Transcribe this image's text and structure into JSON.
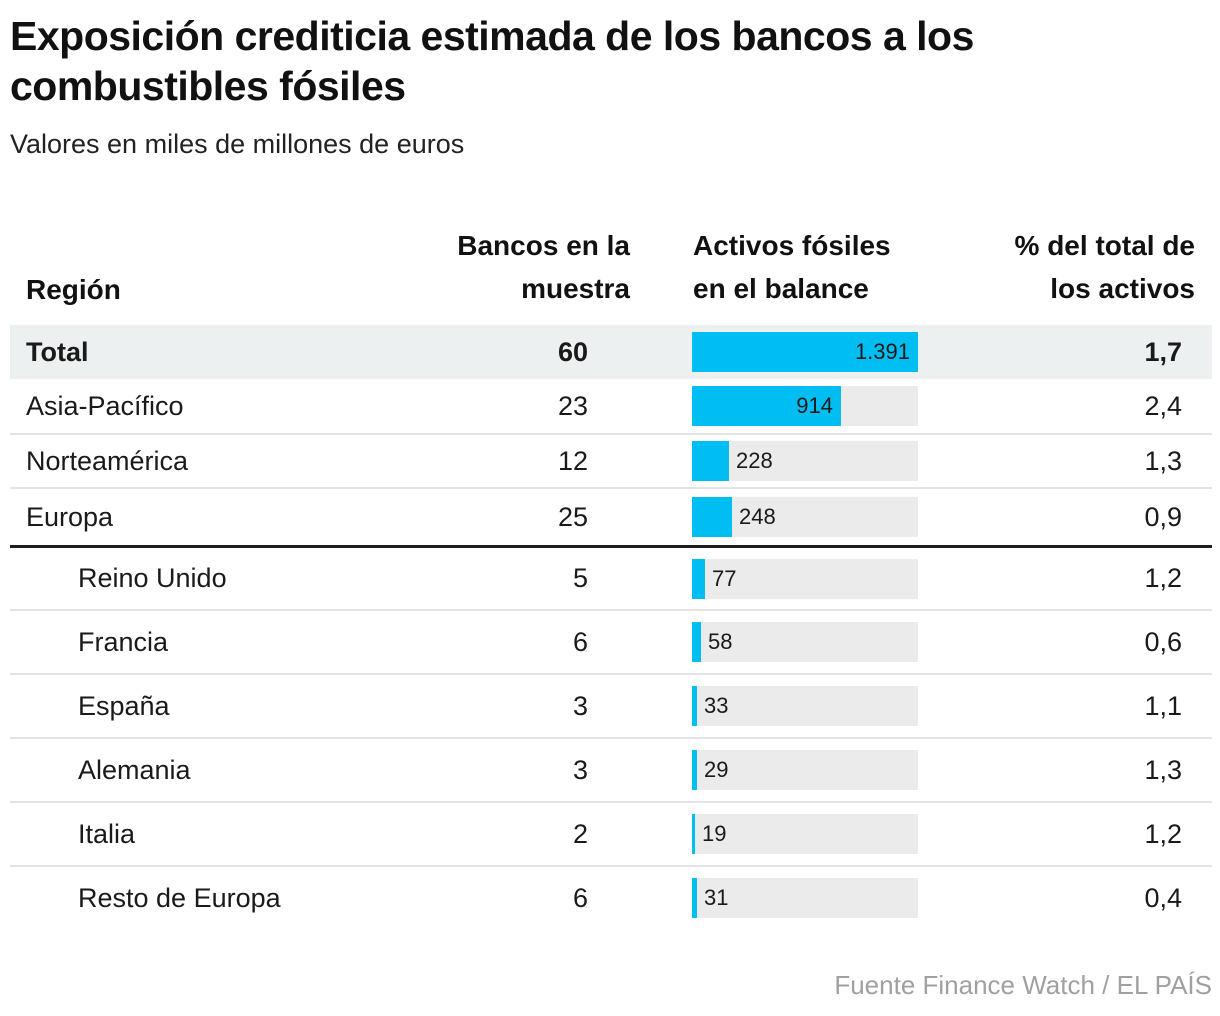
{
  "title": "Exposición crediticia estimada de los bancos a los combustibles fósiles",
  "subtitle": "Valores en miles de millones de euros",
  "source": "Fuente Finance Watch / EL PAÍS",
  "colors": {
    "bar_fill": "#00bef2",
    "bar_track": "#ebebeb",
    "total_row_bg": "#edf0f0",
    "divider_thick": "#1d1d1d",
    "divider_thin": "#e4e4e4"
  },
  "columns": {
    "region": "Región",
    "banks": {
      "line1": "Bancos en la",
      "line2": "muestra"
    },
    "assets": {
      "line1": "Activos fósiles",
      "line2": "en el balance"
    },
    "pct": {
      "line1": "% del total de",
      "line2": "los activos"
    }
  },
  "chart_data": {
    "type": "bar",
    "orientation": "horizontal",
    "title": "Exposición crediticia estimada de los bancos a los combustibles fósiles",
    "subtitle": "Valores en miles de millones de euros",
    "unit": "miles de millones de euros",
    "xlim": [
      0,
      1391
    ],
    "columns": [
      "Región",
      "Bancos en la muestra",
      "Activos fósiles en el balance",
      "% del total de los activos"
    ],
    "rows": [
      {
        "region": "Total",
        "banks": "60",
        "assets": 1391,
        "assets_label": "1.391",
        "pct": "1,7",
        "level": "total"
      },
      {
        "region": "Asia-Pacífico",
        "banks": "23",
        "assets": 914,
        "assets_label": "914",
        "pct": "2,4",
        "level": "region"
      },
      {
        "region": "Norteamérica",
        "banks": "12",
        "assets": 228,
        "assets_label": "228",
        "pct": "1,3",
        "level": "region"
      },
      {
        "region": "Europa",
        "banks": "25",
        "assets": 248,
        "assets_label": "248",
        "pct": "0,9",
        "level": "region"
      },
      {
        "region": "Reino Unido",
        "banks": "5",
        "assets": 77,
        "assets_label": "77",
        "pct": "1,2",
        "level": "sub"
      },
      {
        "region": "Francia",
        "banks": "6",
        "assets": 58,
        "assets_label": "58",
        "pct": "0,6",
        "level": "sub"
      },
      {
        "region": "España",
        "banks": "3",
        "assets": 33,
        "assets_label": "33",
        "pct": "1,1",
        "level": "sub"
      },
      {
        "region": "Alemania",
        "banks": "3",
        "assets": 29,
        "assets_label": "29",
        "pct": "1,3",
        "level": "sub"
      },
      {
        "region": "Italia",
        "banks": "2",
        "assets": 19,
        "assets_label": "19",
        "pct": "1,2",
        "level": "sub"
      },
      {
        "region": "Resto de Europa",
        "banks": "6",
        "assets": 31,
        "assets_label": "31",
        "pct": "0,4",
        "level": "sub"
      }
    ]
  }
}
